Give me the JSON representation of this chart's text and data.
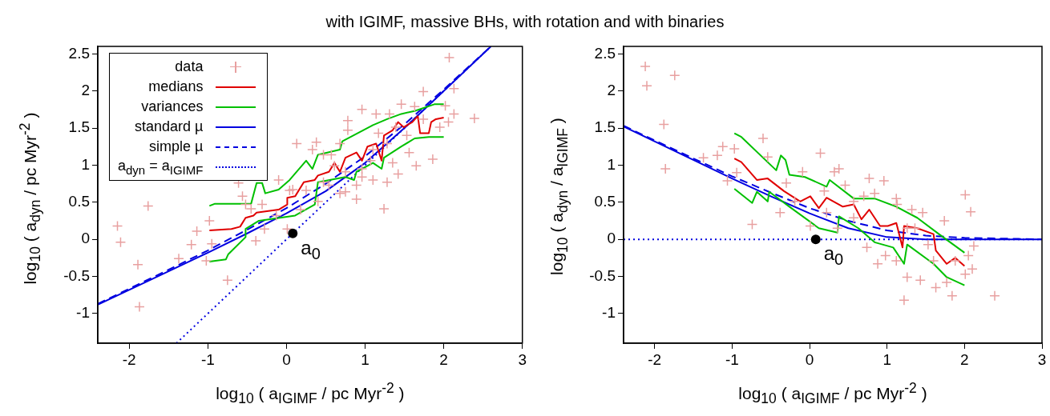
{
  "chart_data": [
    {
      "type": "scatter",
      "title": "with IGIMF, massive BHs, with rotation and with binaries",
      "xlabel": "log$_{10}$ ( a$_{IGIMF}$ / pc Myr$^{-2}$ )",
      "ylabel": "log$_{10}$ ( a$_{dyn}$ / pc Myr$^{-2}$ )",
      "xlim": [
        -2.4,
        3
      ],
      "ylim": [
        -1.4,
        2.6
      ],
      "xticks": [
        -2,
        -1,
        0,
        1,
        2,
        3
      ],
      "yticks": [
        -1,
        -0.5,
        0,
        0.5,
        1,
        1.5,
        2,
        2.5
      ],
      "legend": "top left",
      "annotations": [
        {
          "text": "a$_{0}$",
          "x": 0.08,
          "y": 0.08
        }
      ],
      "series": [
        {
          "name": "data",
          "type": "scatter",
          "marker": "cross",
          "color": "#e8a0a0",
          "x": [
            -2.15,
            -2.11,
            -1.76,
            -1.89,
            -1.87,
            -1.37,
            -1.21,
            -1.14,
            -0.98,
            -0.95,
            -1.02,
            -0.75,
            -0.61,
            -0.56,
            -0.39,
            -0.52,
            -0.45,
            -0.31,
            -0.28,
            -0.13,
            -0.1,
            0.01,
            0.04,
            0.08,
            0.13,
            0.33,
            0.38,
            0.18,
            0.25,
            0.4,
            0.47,
            0.54,
            0.57,
            0.68,
            0.68,
            0.75,
            0.78,
            0.78,
            0.89,
            0.89,
            0.96,
            0.96,
            1.07,
            1.1,
            1.14,
            1.17,
            1.24,
            1.28,
            1.31,
            1.35,
            1.42,
            1.46,
            1.53,
            1.56,
            1.63,
            1.65,
            1.74,
            1.74,
            1.86,
            1.95,
            2.02,
            2.06,
            2.07,
            2.13,
            2.13,
            2.39,
            1.1,
            1.28,
            1.39,
            0.75,
            0.96,
            0.47,
            0.61
          ],
          "values": [
            0.18,
            -0.04,
            0.45,
            -0.34,
            -0.91,
            -0.26,
            -0.07,
            0.11,
            0.25,
            -0.06,
            -0.29,
            -0.55,
            0.76,
            0.58,
            -0.02,
            0.47,
            0.41,
            0.47,
            0.14,
            0.32,
            0.8,
            0.14,
            0.66,
            0.67,
            1.29,
            1.21,
            1.31,
            0.4,
            0.66,
            0.51,
            1.14,
            0.73,
            1.14,
            0.62,
            1.29,
            0.64,
            1.6,
            1.47,
            0.54,
            0.73,
            1.75,
            0.84,
            1.06,
            0.8,
            1.69,
            1.43,
            0.41,
            0.77,
            1.69,
            1.03,
            0.88,
            1.82,
            1.4,
            1.17,
            1.79,
            0.99,
            1.99,
            1.62,
            1.08,
            1.51,
            1.8,
            1.58,
            2.45,
            2.03,
            1.69,
            1.63,
            1.21,
            1.29,
            1.51,
            0.91,
            0.95,
            0.77,
            0.99
          ]
        },
        {
          "name": "medians",
          "type": "line",
          "marker": "none",
          "line_style": "solid",
          "color": "#e00000",
          "x": [
            -0.98,
            -0.7,
            -0.59,
            -0.52,
            -0.42,
            -0.38,
            -0.1,
            0.01,
            0.01,
            0.11,
            0.22,
            0.36,
            0.4,
            0.54,
            0.61,
            0.68,
            0.75,
            0.89,
            0.96,
            1.03,
            1.14,
            1.21,
            1.24,
            1.35,
            1.42,
            1.49,
            1.6,
            1.67,
            1.7,
            1.81,
            1.84,
            1.9,
            2.0
          ],
          "values": [
            0.12,
            0.14,
            0.17,
            0.29,
            0.32,
            0.36,
            0.4,
            0.47,
            0.56,
            0.58,
            0.77,
            0.8,
            0.86,
            0.91,
            1.03,
            0.91,
            1.1,
            1.17,
            1.06,
            1.25,
            1.29,
            1.06,
            1.4,
            1.47,
            1.58,
            1.51,
            1.58,
            1.66,
            1.43,
            1.43,
            1.58,
            1.62,
            1.64
          ]
        },
        {
          "name": "variances",
          "type": "line",
          "marker": "none",
          "line_style": "solid",
          "color": "#00c000",
          "x": [
            -0.98,
            -0.91,
            -0.45,
            -0.38,
            -0.31,
            -0.27,
            -0.1,
            0.04,
            0.25,
            0.33,
            0.4,
            0.68,
            0.71,
            1.1,
            1.28,
            1.46,
            1.63,
            1.88,
            2.0
          ],
          "values": [
            0.45,
            0.48,
            0.48,
            0.76,
            0.76,
            0.62,
            0.67,
            0.8,
            1.06,
            0.95,
            1.14,
            1.21,
            1.32,
            1.54,
            1.62,
            1.69,
            1.73,
            1.82,
            1.82
          ]
        },
        {
          "type": "line",
          "marker": "none",
          "line_style": "solid",
          "color": "#00c000",
          "x": [
            -0.98,
            -0.77,
            -0.74,
            -0.52,
            -0.52,
            -0.35,
            0.11,
            0.36,
            0.4,
            0.75,
            0.86,
            0.89,
            1.1,
            1.21,
            1.24,
            1.46,
            1.63,
            1.81,
            2.0
          ],
          "values": [
            -0.3,
            -0.27,
            -0.2,
            0.03,
            0.14,
            0.25,
            0.32,
            0.47,
            0.77,
            0.84,
            0.8,
            0.91,
            1.03,
            0.95,
            1.1,
            1.25,
            1.36,
            1.38,
            1.38
          ]
        },
        {
          "name": "standard µ",
          "type": "line",
          "marker": "none",
          "line_style": "solid",
          "color": "#0000e0",
          "x": [
            -2.4,
            -1.5,
            -1,
            -0.5,
            0,
            0.5,
            1,
            1.5,
            2,
            2.6
          ],
          "values": [
            -0.88,
            -0.43,
            -0.18,
            0.08,
            0.35,
            0.65,
            1.03,
            1.5,
            2.0,
            2.6
          ]
        },
        {
          "name": "simple µ",
          "type": "line",
          "marker": "none",
          "line_style": "dashed",
          "color": "#0000e0",
          "x": [
            -2.4,
            -1.5,
            -1,
            -0.5,
            0,
            0.5,
            1,
            1.5,
            2,
            2.58
          ],
          "values": [
            -0.87,
            -0.41,
            -0.15,
            0.13,
            0.42,
            0.75,
            1.12,
            1.55,
            2.02,
            2.58
          ]
        },
        {
          "name": "a$_{dyn}$ = a$_{IGIMF}$",
          "type": "line",
          "marker": "none",
          "line_style": "dotted",
          "color": "#0000e0",
          "x": [
            -1.4,
            2.6
          ],
          "values": [
            -1.4,
            2.6
          ]
        }
      ]
    },
    {
      "type": "scatter",
      "xlabel": "log$_{10}$ ( a$_{IGIMF}$ / pc Myr$^{-2}$ )",
      "ylabel": "log$_{10}$ ( a$_{dyn}$ / a$_{IGIMF}$ )",
      "xlim": [
        -2.4,
        3
      ],
      "ylim": [
        -1.4,
        2.6
      ],
      "xticks": [
        -2,
        -1,
        0,
        1,
        2,
        3
      ],
      "yticks": [
        -1,
        -0.5,
        0,
        0.5,
        1,
        1.5,
        2,
        2.5
      ],
      "annotations": [
        {
          "text": "a$_{0}$",
          "x": 0.08,
          "y": 0
        }
      ],
      "series": [
        {
          "type": "scatter",
          "marker": "cross",
          "color": "#e8a0a0",
          "x": [
            -2.12,
            -2.1,
            -1.74,
            -1.88,
            -1.86,
            -1.37,
            -1.19,
            -1.12,
            -0.97,
            -1.06,
            -0.94,
            -0.6,
            -0.54,
            -0.74,
            -0.38,
            -0.3,
            -0.09,
            0.14,
            0.32,
            0.38,
            0.19,
            0.01,
            0.36,
            0.46,
            0.57,
            0.7,
            0.77,
            0.84,
            0.96,
            0.74,
            0.88,
            0.98,
            1.12,
            1.13,
            1.32,
            1.46,
            1.26,
            1.36,
            1.74,
            1.53,
            1.26,
            1.43,
            1.22,
            1.63,
            1.77,
            1.84,
            2.01,
            2.08,
            2.12,
            2.05,
            2.1,
            2.01,
            2.39,
            1.88,
            1.12,
            1.6,
            0.57,
            -0.19,
            0.22
          ],
          "values": [
            2.33,
            2.07,
            2.21,
            1.55,
            0.95,
            1.1,
            1.13,
            1.25,
            1.22,
            0.79,
            0.9,
            1.36,
            1.11,
            0.2,
            0.36,
            0.76,
            0.91,
            1.16,
            0.91,
            0.95,
            0.65,
            0.18,
            0.15,
            0.73,
            0.51,
            0.58,
            0.82,
            0.62,
            0.79,
            -0.11,
            -0.33,
            -0.22,
            0.55,
            0.47,
            0.4,
            0.36,
            0.15,
            0.15,
            0.25,
            -0.07,
            -0.51,
            -0.55,
            -0.82,
            -0.65,
            -0.58,
            -0.76,
            0.6,
            0.37,
            -0.09,
            -0.22,
            -0.4,
            -0.47,
            -0.76,
            -0.29,
            -0.29,
            -0.29,
            0.29,
            0.51,
            0.36
          ]
        },
        {
          "type": "line",
          "marker": "none",
          "line_style": "solid",
          "color": "#e00000",
          "x": [
            -0.97,
            -0.88,
            -0.68,
            -0.54,
            -0.33,
            -0.12,
            0.01,
            0.12,
            0.22,
            0.43,
            0.57,
            0.67,
            0.77,
            0.91,
            1.01,
            1.12,
            1.2,
            1.22,
            1.39,
            1.6,
            1.63,
            1.77,
            1.88,
            2.0
          ],
          "values": [
            1.09,
            1.04,
            0.8,
            0.82,
            0.65,
            0.51,
            0.58,
            0.42,
            0.56,
            0.44,
            0.47,
            0.27,
            0.4,
            0.18,
            0.18,
            0.22,
            -0.11,
            0.18,
            0.15,
            0.07,
            -0.15,
            -0.33,
            -0.25,
            -0.36
          ]
        },
        {
          "type": "line",
          "marker": "none",
          "line_style": "solid",
          "color": "#00c000",
          "x": [
            -0.97,
            -0.88,
            -0.43,
            -0.37,
            -0.31,
            -0.26,
            -0.06,
            0.22,
            0.26,
            0.57,
            0.84,
            1.12,
            1.39,
            1.67,
            2.0
          ],
          "values": [
            1.43,
            1.38,
            0.93,
            1.13,
            1.07,
            0.87,
            0.84,
            0.71,
            0.8,
            0.55,
            0.55,
            0.44,
            0.29,
            0.07,
            -0.18
          ]
        },
        {
          "type": "line",
          "marker": "none",
          "line_style": "solid",
          "color": "#00c000",
          "x": [
            -0.97,
            -0.74,
            -0.68,
            -0.54,
            -0.52,
            -0.26,
            0.12,
            0.36,
            0.38,
            0.63,
            0.84,
            1.08,
            1.22,
            1.26,
            1.6,
            1.77,
            2.0
          ],
          "values": [
            0.68,
            0.49,
            0.64,
            0.51,
            0.64,
            0.44,
            0.15,
            0.09,
            0.31,
            0.15,
            -0.04,
            -0.11,
            -0.33,
            -0.07,
            -0.33,
            -0.51,
            -0.62
          ]
        },
        {
          "type": "line",
          "marker": "none",
          "line_style": "solid",
          "color": "#0000e0",
          "x": [
            -2.4,
            -1.5,
            -1,
            -0.5,
            0,
            0.5,
            1,
            1.5,
            2,
            3
          ],
          "values": [
            1.52,
            1.07,
            0.82,
            0.58,
            0.35,
            0.15,
            0.03,
            0,
            0,
            0
          ]
        },
        {
          "type": "line",
          "marker": "none",
          "line_style": "dashed",
          "color": "#0000e0",
          "x": [
            -2.4,
            -1.5,
            -1,
            -0.5,
            0,
            0.5,
            1,
            1.5,
            2,
            3
          ],
          "values": [
            1.53,
            1.09,
            0.85,
            0.63,
            0.42,
            0.25,
            0.12,
            0.05,
            0.02,
            0
          ]
        },
        {
          "type": "line",
          "marker": "none",
          "line_style": "dotted",
          "color": "#0000e0",
          "x": [
            -2.4,
            3
          ],
          "values": [
            0,
            0
          ]
        }
      ]
    }
  ]
}
